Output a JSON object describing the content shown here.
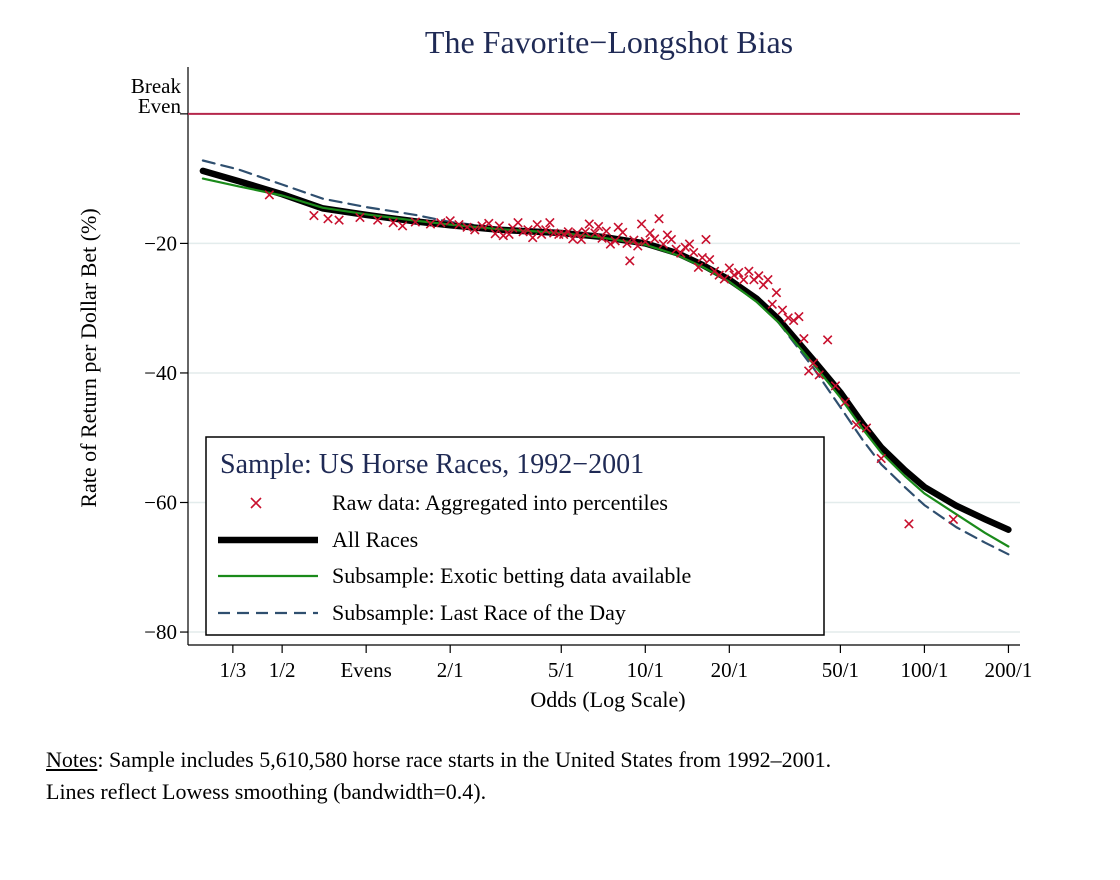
{
  "chart_data": {
    "type": "line",
    "title": "The Favorite−Longshot Bias",
    "xlabel": "Odds (Log Scale)",
    "ylabel": "Rate of Return per Dollar Bet (%)",
    "x_scale": "log",
    "x_unit": "odds-to-one",
    "xlim": [
      0.23,
      220
    ],
    "ylim": [
      -82,
      6
    ],
    "x_ticks": [
      {
        "value": 0.333,
        "label": "1/3"
      },
      {
        "value": 0.5,
        "label": "1/2"
      },
      {
        "value": 1,
        "label": "Evens"
      },
      {
        "value": 2,
        "label": "2/1"
      },
      {
        "value": 5,
        "label": "5/1"
      },
      {
        "value": 10,
        "label": "10/1"
      },
      {
        "value": 20,
        "label": "20/1"
      },
      {
        "value": 50,
        "label": "50/1"
      },
      {
        "value": 100,
        "label": "100/1"
      },
      {
        "value": 200,
        "label": "200/1"
      }
    ],
    "y_ticks": [
      {
        "value": -20,
        "label": "−20"
      },
      {
        "value": -40,
        "label": "−40"
      },
      {
        "value": -60,
        "label": "−60"
      },
      {
        "value": -80,
        "label": "−80"
      }
    ],
    "reference_line": {
      "y": 0,
      "label_line1": "Break",
      "label_line2": "Even",
      "color": "#b5264b"
    },
    "grid": true,
    "legend": {
      "position": "lower-left",
      "title": "Sample: US Horse Races, 1992−2001",
      "items": [
        "Raw data: Aggregated into percentiles",
        "All Races",
        "Subsample: Exotic betting data available",
        "Subsample: Last Race of the Day"
      ]
    },
    "colors": {
      "raw": "#c8102e",
      "all": "#000000",
      "exotic": "#1a8a1a",
      "last": "#2f4f6f",
      "break_even": "#b5264b",
      "title": "#1f2a55",
      "grid": "#e3ecec"
    },
    "series": [
      {
        "name": "Raw data: Aggregated into percentiles",
        "kind": "scatter",
        "points": [
          [
            0.45,
            -12.5
          ],
          [
            0.65,
            -15.7
          ],
          [
            0.73,
            -16.2
          ],
          [
            0.8,
            -16.4
          ],
          [
            0.95,
            -16
          ],
          [
            1.1,
            -16.4
          ],
          [
            1.25,
            -16.8
          ],
          [
            1.35,
            -17.3
          ],
          [
            1.5,
            -16.7
          ],
          [
            1.7,
            -17
          ],
          [
            1.85,
            -16.8
          ],
          [
            2.0,
            -16.5
          ],
          [
            2.15,
            -17.1
          ],
          [
            2.3,
            -17.5
          ],
          [
            2.45,
            -17.9
          ],
          [
            2.6,
            -17.3
          ],
          [
            2.75,
            -16.9
          ],
          [
            2.9,
            -18.5
          ],
          [
            3.0,
            -17.3
          ],
          [
            3.1,
            -18.8
          ],
          [
            3.25,
            -18.6
          ],
          [
            3.35,
            -17.6
          ],
          [
            3.5,
            -16.8
          ],
          [
            3.65,
            -18.2
          ],
          [
            3.8,
            -17.9
          ],
          [
            3.95,
            -19.1
          ],
          [
            4.1,
            -17.1
          ],
          [
            4.25,
            -18.6
          ],
          [
            4.4,
            -17.9
          ],
          [
            4.55,
            -16.8
          ],
          [
            4.7,
            -18.4
          ],
          [
            4.9,
            -18.6
          ],
          [
            5.1,
            -18.6
          ],
          [
            5.3,
            -18.2
          ],
          [
            5.5,
            -19.3
          ],
          [
            5.7,
            -18.4
          ],
          [
            5.9,
            -19.4
          ],
          [
            6.1,
            -18.2
          ],
          [
            6.3,
            -17
          ],
          [
            6.6,
            -18.4
          ],
          [
            6.8,
            -17.4
          ],
          [
            7.0,
            -19.2
          ],
          [
            7.25,
            -18.1
          ],
          [
            7.5,
            -20.1
          ],
          [
            7.8,
            -19.6
          ],
          [
            8.0,
            -17.5
          ],
          [
            8.3,
            -18.3
          ],
          [
            8.6,
            -20
          ],
          [
            8.8,
            -22.7
          ],
          [
            9.1,
            -19.5
          ],
          [
            9.4,
            -20.4
          ],
          [
            9.7,
            -17
          ],
          [
            10.0,
            -19.7
          ],
          [
            10.4,
            -18.4
          ],
          [
            10.8,
            -19.3
          ],
          [
            11.2,
            -16.2
          ],
          [
            11.6,
            -20.1
          ],
          [
            12.0,
            -18.7
          ],
          [
            12.4,
            -19.4
          ],
          [
            12.9,
            -20.9
          ],
          [
            13.4,
            -21.5
          ],
          [
            13.9,
            -20.6
          ],
          [
            14.4,
            -20.1
          ],
          [
            14.9,
            -21.4
          ],
          [
            15.5,
            -23.7
          ],
          [
            16.0,
            -22.2
          ],
          [
            16.5,
            -19.4
          ],
          [
            17.0,
            -22.5
          ],
          [
            17.7,
            -24.3
          ],
          [
            18.4,
            -24.9
          ],
          [
            19.2,
            -25.5
          ],
          [
            20.0,
            -23.8
          ],
          [
            20.8,
            -24.9
          ],
          [
            21.6,
            -24.5
          ],
          [
            22.5,
            -25.6
          ],
          [
            23.5,
            -24.3
          ],
          [
            24.5,
            -25.6
          ],
          [
            25.5,
            -25
          ],
          [
            26.5,
            -26.4
          ],
          [
            27.5,
            -25.6
          ],
          [
            28.5,
            -29.4
          ],
          [
            29.5,
            -27.6
          ],
          [
            31.0,
            -30.3
          ],
          [
            32.5,
            -31.5
          ],
          [
            34.0,
            -31.9
          ],
          [
            35.5,
            -31.3
          ],
          [
            37.0,
            -34.7
          ],
          [
            38.5,
            -39.7
          ],
          [
            40.0,
            -38.5
          ],
          [
            42.0,
            -40.3
          ],
          [
            45.0,
            -34.9
          ],
          [
            48.0,
            -42.0
          ],
          [
            52.0,
            -44.5
          ],
          [
            57.0,
            -48.0
          ],
          [
            62.0,
            -48.5
          ],
          [
            70.0,
            -53.2
          ],
          [
            88.0,
            -63.3
          ],
          [
            127.0,
            -62.6
          ]
        ]
      },
      {
        "name": "All Races",
        "kind": "line",
        "points": [
          [
            0.26,
            -8.8
          ],
          [
            0.35,
            -10.4
          ],
          [
            0.5,
            -12.4
          ],
          [
            0.7,
            -14.6
          ],
          [
            1.0,
            -15.6
          ],
          [
            1.5,
            -16.6
          ],
          [
            2.0,
            -17.2
          ],
          [
            3.0,
            -17.9
          ],
          [
            5.0,
            -18.4
          ],
          [
            7.0,
            -19.0
          ],
          [
            10.0,
            -20.0
          ],
          [
            13.0,
            -21.5
          ],
          [
            16.0,
            -23.3
          ],
          [
            20.0,
            -25.6
          ],
          [
            25.0,
            -28.5
          ],
          [
            30.0,
            -31.7
          ],
          [
            40.0,
            -38.0
          ],
          [
            50.0,
            -43.0
          ],
          [
            60.0,
            -47.8
          ],
          [
            70.0,
            -51.5
          ],
          [
            85.0,
            -55.0
          ],
          [
            100.0,
            -57.6
          ],
          [
            130.0,
            -60.5
          ],
          [
            165.0,
            -62.6
          ],
          [
            200.0,
            -64.2
          ]
        ]
      },
      {
        "name": "Subsample: Exotic betting data available",
        "kind": "line",
        "points": [
          [
            0.26,
            -10.0
          ],
          [
            0.35,
            -11.2
          ],
          [
            0.5,
            -12.6
          ],
          [
            0.7,
            -14.5
          ],
          [
            1.0,
            -15.5
          ],
          [
            1.5,
            -16.5
          ],
          [
            2.0,
            -17.1
          ],
          [
            3.0,
            -17.8
          ],
          [
            5.0,
            -18.4
          ],
          [
            7.0,
            -19.1
          ],
          [
            10.0,
            -20.2
          ],
          [
            13.0,
            -21.8
          ],
          [
            16.0,
            -23.6
          ],
          [
            20.0,
            -25.9
          ],
          [
            25.0,
            -29.0
          ],
          [
            30.0,
            -32.2
          ],
          [
            40.0,
            -38.6
          ],
          [
            50.0,
            -43.8
          ],
          [
            60.0,
            -48.6
          ],
          [
            70.0,
            -52.3
          ],
          [
            85.0,
            -55.9
          ],
          [
            100.0,
            -58.6
          ],
          [
            130.0,
            -61.8
          ],
          [
            165.0,
            -64.7
          ],
          [
            200.0,
            -66.8
          ]
        ]
      },
      {
        "name": "Subsample: Last Race of the Day",
        "kind": "line",
        "points": [
          [
            0.26,
            -7.2
          ],
          [
            0.35,
            -8.6
          ],
          [
            0.5,
            -10.9
          ],
          [
            0.7,
            -13.1
          ],
          [
            1.0,
            -14.4
          ],
          [
            1.5,
            -15.6
          ],
          [
            2.0,
            -16.7
          ],
          [
            3.0,
            -17.6
          ],
          [
            5.0,
            -18.3
          ],
          [
            7.0,
            -19.0
          ],
          [
            10.0,
            -20.1
          ],
          [
            13.0,
            -21.6
          ],
          [
            16.0,
            -23.2
          ],
          [
            20.0,
            -25.6
          ],
          [
            25.0,
            -28.8
          ],
          [
            30.0,
            -32.2
          ],
          [
            40.0,
            -39.2
          ],
          [
            50.0,
            -45.3
          ],
          [
            60.0,
            -50.3
          ],
          [
            70.0,
            -54.1
          ],
          [
            85.0,
            -57.6
          ],
          [
            100.0,
            -60.4
          ],
          [
            130.0,
            -63.8
          ],
          [
            165.0,
            -66.2
          ],
          [
            200.0,
            -68.0
          ]
        ]
      }
    ]
  },
  "notes": {
    "label": "Notes",
    "line1": ": Sample includes 5,610,580 horse race starts in the United States from 1992–2001.",
    "line2": "Lines reflect Lowess smoothing (bandwidth=0.4)."
  }
}
